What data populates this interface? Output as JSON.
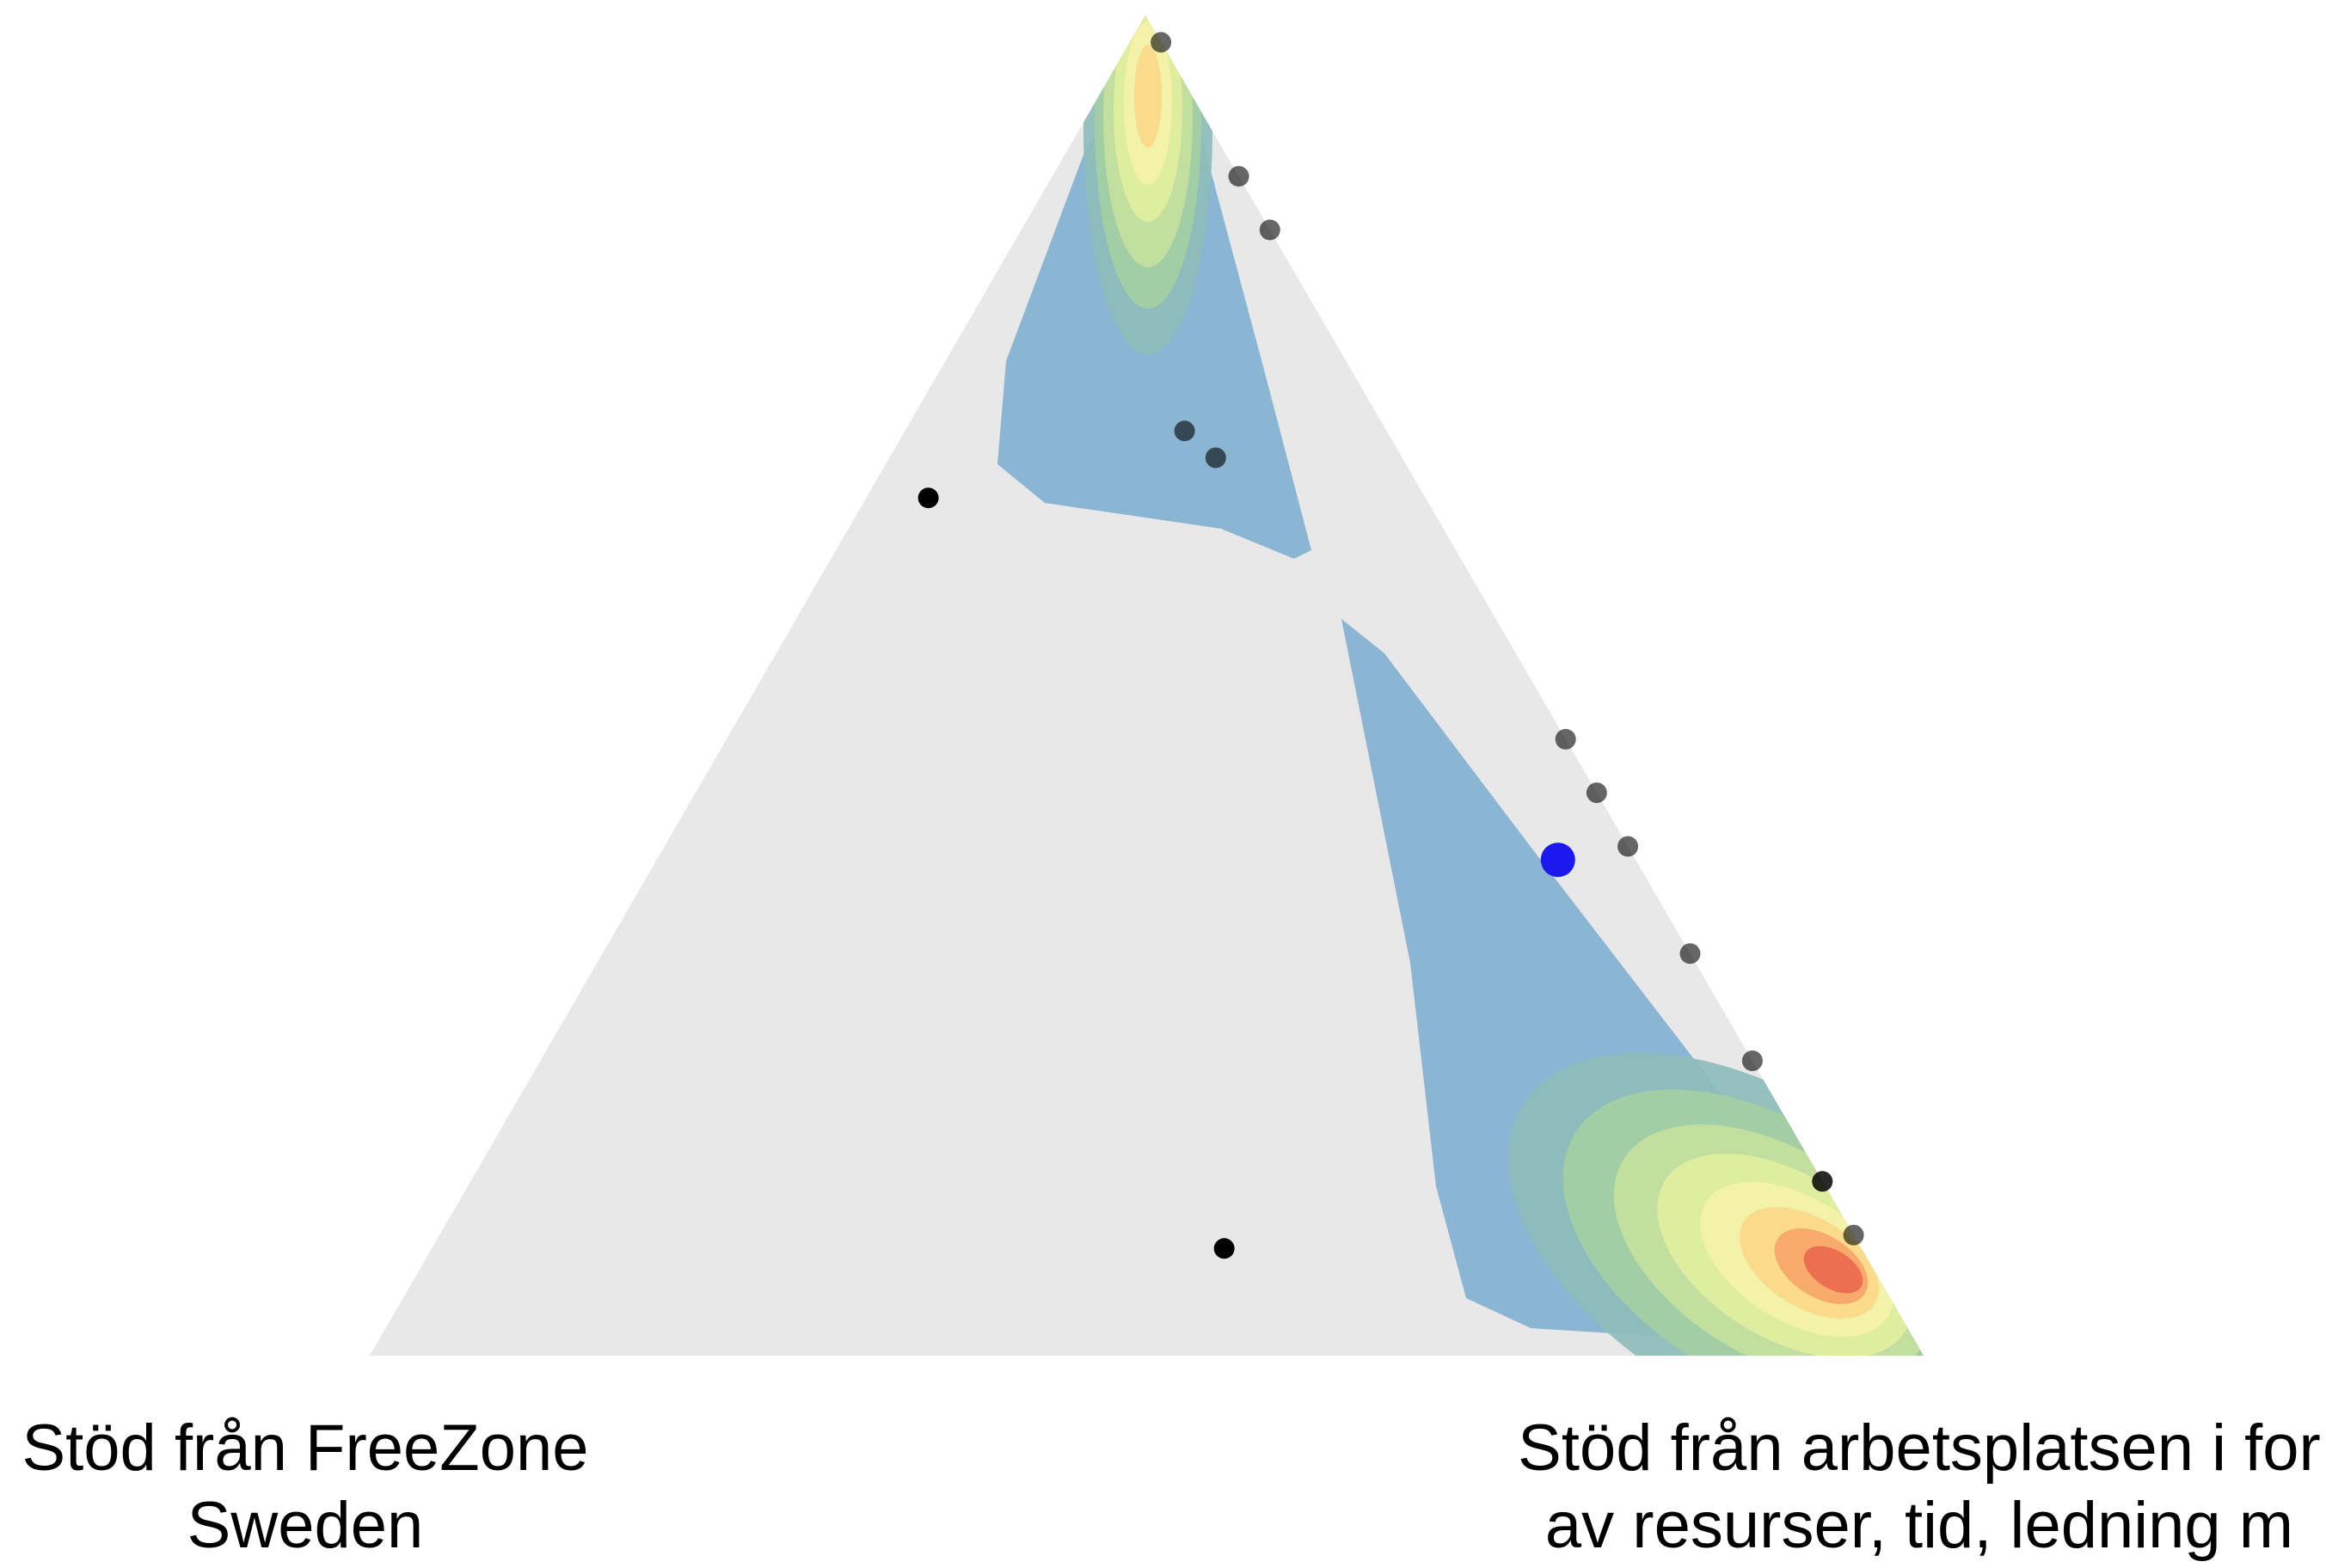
{
  "chart_data": {
    "type": "scatter",
    "subtype": "ternary-density",
    "corner_labels": {
      "bottom_left": [
        "Stöd från FreeZone",
        "Sweden"
      ],
      "bottom_right": [
        "Stöd från arbetsplatsen i for",
        "av resurser, tid, ledning m"
      ]
    },
    "series": [
      {
        "points": [
          [
            0.0,
            0.98,
            0.02
          ],
          [
            0.0,
            0.88,
            0.12
          ],
          [
            0.0,
            0.84,
            0.16
          ],
          [
            0.13,
            0.69,
            0.18
          ],
          [
            0.12,
            0.67,
            0.21
          ],
          [
            0.32,
            0.64,
            0.04
          ],
          [
            0.0,
            0.46,
            0.54
          ],
          [
            0.0,
            0.42,
            0.58
          ],
          [
            0.0,
            0.38,
            0.62
          ],
          [
            0.0,
            0.3,
            0.7
          ],
          [
            0.0,
            0.22,
            0.78
          ],
          [
            0.0,
            0.13,
            0.87
          ],
          [
            0.0,
            0.13,
            0.87
          ],
          [
            0.0,
            0.09,
            0.91
          ],
          [
            0.41,
            0.08,
            0.51
          ]
        ]
      }
    ],
    "highlight_point": [
      0.05,
      0.37,
      0.58
    ],
    "density_levels": 9,
    "colors": {
      "background_triangle": "#e8e8e8",
      "point": "#000000",
      "highlight": "#1a1aee",
      "density_scale": [
        "#8ab5d3",
        "#8ebcb8",
        "#a4cfa3",
        "#c5e1a0",
        "#e2ee9e",
        "#f3f3a8",
        "#fbd98a",
        "#f7a66a",
        "#ec6a50",
        "#dd3b3c"
      ]
    }
  }
}
